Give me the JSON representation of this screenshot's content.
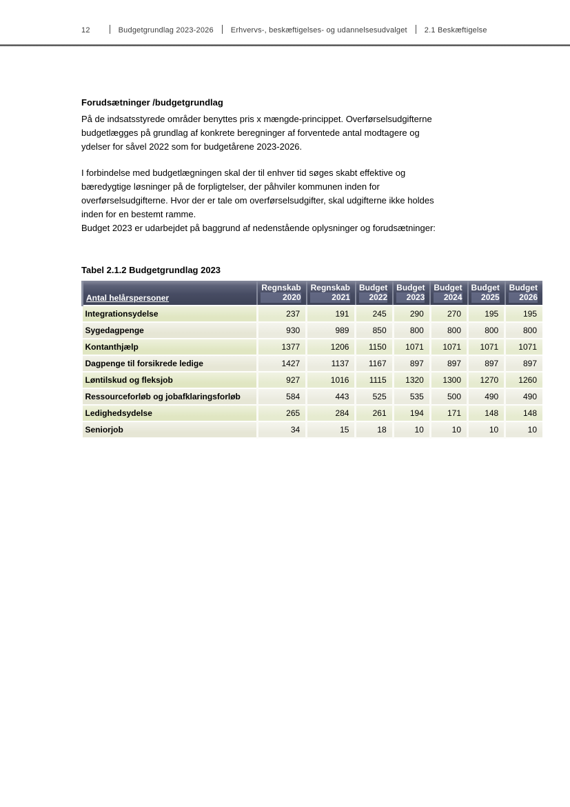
{
  "header": {
    "page_number": "12",
    "items": [
      "Budgetgrundlag 2023-2026",
      "Erhvervs-, beskæftigelses- og udannelsesudvalget",
      "2.1 Beskæftigelse"
    ]
  },
  "content": {
    "heading": "Forudsætninger /budgetgrundlag",
    "paragraph1": "På de indsatsstyrede områder benyttes pris x mængde-princippet. Overførselsudgifterne\nbudgetlægges på grundlag af konkrete beregninger af forventede antal modtagere og\nydelser for såvel 2022 som for budgetårene 2023-2026.",
    "paragraph2": "I forbindelse med budgetlægningen skal der til enhver tid søges skabt effektive og\nbæredygtige løsninger på de forpligtelser, der påhviler kommunen inden for\noverførselsudgifterne. Hvor der er tale om overførselsudgifter, skal udgifterne ikke holdes\ninden for en bestemt ramme.\nBudget 2023 er udarbejdet på baggrund af nedenstående oplysninger og forudsætninger:"
  },
  "table": {
    "title": "Tabel 2.1.2 Budgetgrundlag 2023",
    "label_header": "Antal helårspersoner",
    "columns": [
      {
        "line1": "Regnskab",
        "line2": "2020"
      },
      {
        "line1": "Regnskab",
        "line2": "2021"
      },
      {
        "line1": "Budget",
        "line2": "2022"
      },
      {
        "line1": "Budget",
        "line2": "2023"
      },
      {
        "line1": "Budget",
        "line2": "2024"
      },
      {
        "line1": "Budget",
        "line2": "2025"
      },
      {
        "line1": "Budget",
        "line2": "2026"
      }
    ],
    "rows": [
      {
        "label": "Integrationsydelse",
        "values": [
          237,
          191,
          245,
          290,
          270,
          195,
          195
        ]
      },
      {
        "label": "Sygedagpenge",
        "values": [
          930,
          989,
          850,
          800,
          800,
          800,
          800
        ]
      },
      {
        "label": "Kontanthjælp",
        "values": [
          1377,
          1206,
          1150,
          1071,
          1071,
          1071,
          1071
        ]
      },
      {
        "label": "Dagpenge til forsikrede ledige",
        "values": [
          1427,
          1137,
          1167,
          897,
          897,
          897,
          897
        ]
      },
      {
        "label": "Løntilskud og fleksjob",
        "values": [
          927,
          1016,
          1115,
          1320,
          1300,
          1270,
          1260
        ]
      },
      {
        "label": "Ressourceforløb og jobafklaringsforløb",
        "values": [
          584,
          443,
          525,
          535,
          500,
          490,
          490
        ]
      },
      {
        "label": "Ledighedsydelse",
        "values": [
          265,
          284,
          261,
          194,
          171,
          148,
          148
        ]
      },
      {
        "label": "Seniorjob",
        "values": [
          34,
          15,
          18,
          10,
          10,
          10,
          10
        ]
      }
    ],
    "colors": {
      "header_bg": "#474c63",
      "row_green": "#e0e6c2",
      "row_light": "#ebebdf"
    }
  }
}
